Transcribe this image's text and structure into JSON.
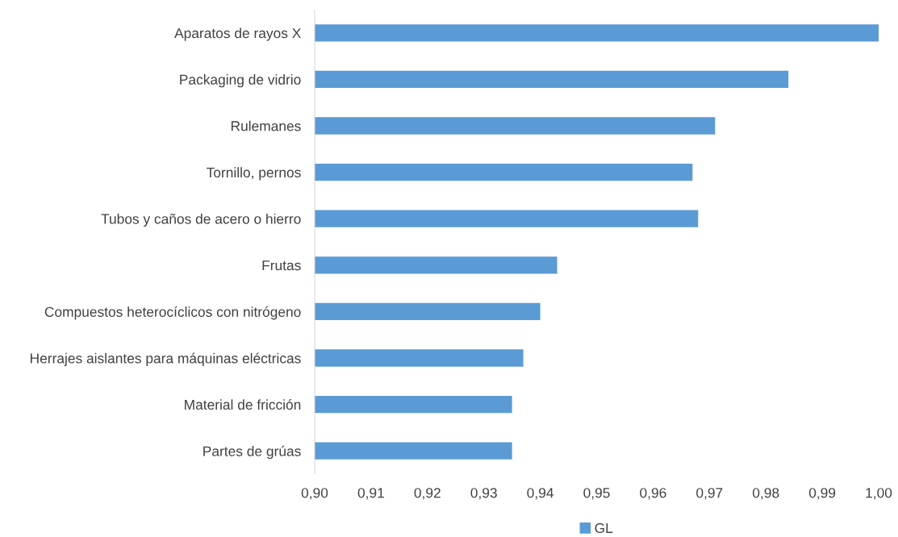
{
  "chart_data": {
    "type": "bar",
    "orientation": "horizontal",
    "categories": [
      "Aparatos de rayos X",
      "Packaging de vidrio",
      "Rulemanes",
      "Tornillo, pernos",
      "Tubos y caños de acero o hierro",
      "Frutas",
      "Compuestos heterocíclicos con nitrógeno",
      "Herrajes aislantes para máquinas eléctricas",
      "Material de fricción",
      "Partes de grúas"
    ],
    "series": [
      {
        "name": "GL",
        "color": "#5b9bd5",
        "values": [
          1.0,
          0.984,
          0.971,
          0.967,
          0.968,
          0.943,
          0.94,
          0.937,
          0.935,
          0.935
        ]
      }
    ],
    "xlim": [
      0.9,
      1.0
    ],
    "xticks": [
      {
        "value": 0.9,
        "label": "0,90"
      },
      {
        "value": 0.91,
        "label": "0,91"
      },
      {
        "value": 0.92,
        "label": "0,92"
      },
      {
        "value": 0.93,
        "label": "0,93"
      },
      {
        "value": 0.94,
        "label": "0,94"
      },
      {
        "value": 0.95,
        "label": "0,95"
      },
      {
        "value": 0.96,
        "label": "0,96"
      },
      {
        "value": 0.97,
        "label": "0,97"
      },
      {
        "value": 0.98,
        "label": "0,98"
      },
      {
        "value": 0.99,
        "label": "0,99"
      },
      {
        "value": 1.0,
        "label": "1,00"
      }
    ],
    "grid": false,
    "legend": "bottom"
  }
}
